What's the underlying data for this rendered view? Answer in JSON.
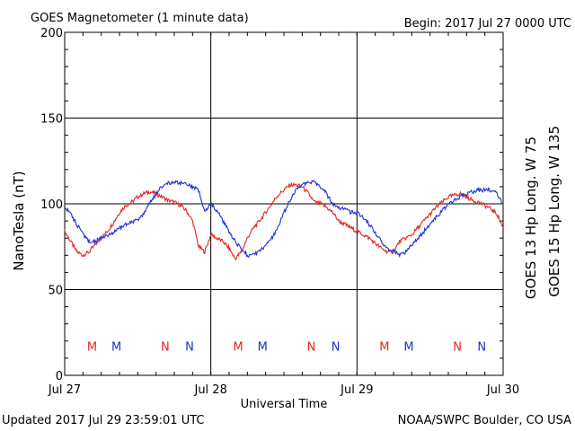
{
  "header": {
    "title": "GOES Magnetometer (1 minute data)",
    "begin": "Begin:  2017 Jul 27 0000 UTC"
  },
  "footer": {
    "updated": "Updated 2017 Jul 29 23:59:01 UTC",
    "credit": "NOAA/SWPC Boulder, CO USA"
  },
  "colors": {
    "goes13": "#e8231e",
    "goes15": "#1c2fd6",
    "axis": "#000000"
  },
  "chart_data": {
    "type": "line",
    "title": "GOES Magnetometer (1 minute data)",
    "xlabel": "Universal Time",
    "ylabel": "NanoTesla (nT)",
    "xlim": [
      0,
      72
    ],
    "ylim": [
      0,
      200
    ],
    "x_unit": "hours since 2017 Jul 27 0000 UTC",
    "y_ticks": [
      0,
      50,
      100,
      150,
      200
    ],
    "x_ticks": [
      {
        "x": 0,
        "label": "Jul 27"
      },
      {
        "x": 24,
        "label": "Jul 28"
      },
      {
        "x": 48,
        "label": "Jul 29"
      },
      {
        "x": 72,
        "label": "Jul 30"
      }
    ],
    "grid": true,
    "series": [
      {
        "name": "GOES 13 Hp  Long. W 75",
        "color": "#e8231e",
        "x": [
          0,
          1,
          2,
          3,
          4,
          5,
          6,
          7,
          8,
          9,
          10,
          11,
          12,
          13,
          14,
          15,
          16,
          17,
          18,
          19,
          20,
          21,
          22,
          23,
          24,
          25,
          26,
          27,
          28,
          29,
          30,
          31,
          32,
          33,
          34,
          35,
          36,
          37,
          38,
          39,
          40,
          41,
          42,
          43,
          44,
          45,
          46,
          47,
          48,
          49,
          50,
          51,
          52,
          53,
          54,
          55,
          56,
          57,
          58,
          59,
          60,
          61,
          62,
          63,
          64,
          65,
          66,
          67,
          68,
          69,
          70,
          71,
          72
        ],
        "values": [
          84,
          78,
          72,
          70,
          72,
          76,
          80,
          84,
          89,
          95,
          99,
          101,
          104,
          106,
          107,
          106,
          104,
          102,
          101,
          99,
          96,
          90,
          75,
          72,
          82,
          80,
          78,
          74,
          68,
          72,
          80,
          86,
          90,
          95,
          100,
          105,
          108,
          111,
          111,
          110,
          106,
          101,
          100,
          98,
          95,
          90,
          88,
          86,
          84,
          82,
          80,
          77,
          74,
          72,
          72,
          78,
          80,
          82,
          86,
          90,
          94,
          98,
          101,
          104,
          105,
          106,
          104,
          102,
          101,
          99,
          97,
          94,
          86
        ]
      },
      {
        "name": "GOES 15 Hp  Long. W 135",
        "color": "#1c2fd6",
        "x": [
          0,
          1,
          2,
          3,
          4,
          5,
          6,
          7,
          8,
          9,
          10,
          11,
          12,
          13,
          14,
          15,
          16,
          17,
          18,
          19,
          20,
          21,
          22,
          23,
          24,
          25,
          26,
          27,
          28,
          29,
          30,
          31,
          32,
          33,
          34,
          35,
          36,
          37,
          38,
          39,
          40,
          41,
          42,
          43,
          44,
          45,
          46,
          47,
          48,
          49,
          50,
          51,
          52,
          53,
          54,
          55,
          56,
          57,
          58,
          59,
          60,
          61,
          62,
          63,
          64,
          65,
          66,
          67,
          68,
          69,
          70,
          71,
          72
        ],
        "values": [
          98,
          94,
          88,
          82,
          78,
          78,
          80,
          82,
          83,
          86,
          88,
          90,
          90,
          94,
          100,
          106,
          110,
          112,
          113,
          112,
          112,
          110,
          108,
          95,
          100,
          96,
          90,
          84,
          78,
          74,
          70,
          70,
          72,
          76,
          80,
          86,
          95,
          102,
          108,
          111,
          112,
          113,
          110,
          106,
          100,
          98,
          97,
          95,
          95,
          92,
          88,
          83,
          78,
          74,
          72,
          70,
          72,
          76,
          80,
          84,
          88,
          92,
          96,
          100,
          102,
          104,
          106,
          107,
          108,
          108,
          108,
          106,
          100
        ]
      }
    ],
    "markers": [
      {
        "label": "M",
        "x": 4.5,
        "color": "#e8231e"
      },
      {
        "label": "M",
        "x": 8.5,
        "color": "#1c2fd6"
      },
      {
        "label": "N",
        "x": 16.5,
        "color": "#e8231e"
      },
      {
        "label": "N",
        "x": 20.5,
        "color": "#1c2fd6"
      },
      {
        "label": "M",
        "x": 28.5,
        "color": "#e8231e"
      },
      {
        "label": "M",
        "x": 32.5,
        "color": "#1c2fd6"
      },
      {
        "label": "N",
        "x": 40.5,
        "color": "#e8231e"
      },
      {
        "label": "N",
        "x": 44.5,
        "color": "#1c2fd6"
      },
      {
        "label": "M",
        "x": 52.5,
        "color": "#e8231e"
      },
      {
        "label": "M",
        "x": 56.5,
        "color": "#1c2fd6"
      },
      {
        "label": "N",
        "x": 64.5,
        "color": "#e8231e"
      },
      {
        "label": "N",
        "x": 68.5,
        "color": "#1c2fd6"
      }
    ],
    "marker_y": 17
  }
}
